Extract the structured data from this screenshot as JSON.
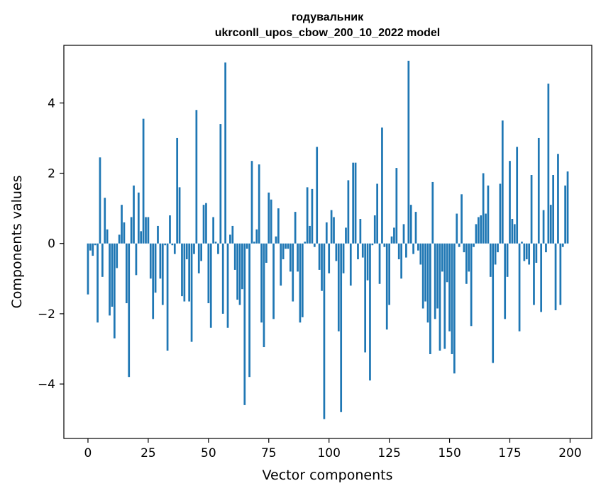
{
  "chart_data": {
    "type": "bar",
    "title_line1": "годувальник",
    "title_line2": "ukrconll_upos_cbow_200_10_2022 model",
    "xlabel": "Vector components",
    "ylabel": "Components values",
    "xlim": [
      -10,
      209
    ],
    "ylim": [
      -5.55,
      5.64
    ],
    "xticks": [
      0,
      25,
      50,
      75,
      100,
      125,
      150,
      175,
      200
    ],
    "yticks": [
      -4,
      -2,
      0,
      2,
      4
    ],
    "ytick_labels": [
      "−4",
      "−2",
      "0",
      "2",
      "4"
    ],
    "bar_color": "#1f77b4",
    "values": [
      -1.45,
      -0.2,
      -0.35,
      -0.05,
      -2.25,
      2.45,
      -0.95,
      1.3,
      0.4,
      -2.05,
      -1.8,
      -2.7,
      -0.7,
      0.25,
      1.1,
      0.6,
      -1.7,
      -3.8,
      0.75,
      1.65,
      -0.9,
      1.45,
      0.35,
      3.55,
      0.75,
      0.75,
      -1.0,
      -2.15,
      -1.4,
      0.5,
      -1.0,
      -1.75,
      -0.05,
      -3.05,
      0.8,
      -0.05,
      -0.3,
      3.0,
      1.6,
      -1.5,
      -1.65,
      -0.45,
      -1.65,
      -2.8,
      -0.3,
      3.8,
      -0.85,
      -0.5,
      1.1,
      1.15,
      -1.7,
      -2.4,
      0.75,
      0.05,
      -0.3,
      3.4,
      -2.0,
      5.15,
      -2.4,
      0.25,
      0.5,
      -0.75,
      -1.6,
      -1.75,
      -1.3,
      -4.6,
      -0.15,
      -3.8,
      2.35,
      0.05,
      0.4,
      2.25,
      -2.25,
      -2.95,
      -0.55,
      1.45,
      1.25,
      -2.15,
      0.2,
      1.0,
      -1.2,
      -0.45,
      -0.15,
      -0.15,
      -0.8,
      -1.65,
      0.9,
      -0.8,
      -2.25,
      -2.1,
      0.05,
      1.6,
      0.5,
      1.55,
      -0.1,
      2.75,
      -0.75,
      -1.35,
      -5.0,
      0.6,
      -0.85,
      0.95,
      0.75,
      -0.5,
      -2.5,
      -4.8,
      -0.85,
      0.45,
      1.8,
      -1.2,
      2.3,
      2.3,
      -0.45,
      0.7,
      -0.4,
      -3.1,
      -1.05,
      -3.9,
      -0.05,
      0.8,
      1.7,
      -1.15,
      3.3,
      -0.1,
      -2.45,
      -1.75,
      0.2,
      0.45,
      2.15,
      -0.45,
      -1.0,
      0.55,
      -0.4,
      5.2,
      1.1,
      -0.3,
      0.9,
      -0.2,
      -0.6,
      -1.85,
      -1.65,
      -2.25,
      -3.15,
      1.75,
      -2.15,
      -1.85,
      -3.05,
      -0.8,
      -3.0,
      -1.1,
      -2.5,
      -3.15,
      -3.7,
      0.85,
      -0.1,
      1.4,
      -0.25,
      -1.15,
      -0.8,
      -2.35,
      -0.1,
      0.55,
      0.75,
      0.8,
      2.0,
      0.85,
      1.65,
      -0.95,
      -3.4,
      -0.6,
      -0.25,
      1.7,
      3.5,
      -2.15,
      -0.95,
      2.35,
      0.7,
      0.55,
      2.75,
      -2.5,
      0.05,
      -0.5,
      -0.45,
      -0.6,
      1.95,
      -1.75,
      -0.55,
      3.0,
      -1.95,
      0.95,
      -0.25,
      4.55,
      1.1,
      1.95,
      -1.9,
      2.55,
      -1.75,
      -0.1,
      1.65,
      2.05
    ]
  }
}
